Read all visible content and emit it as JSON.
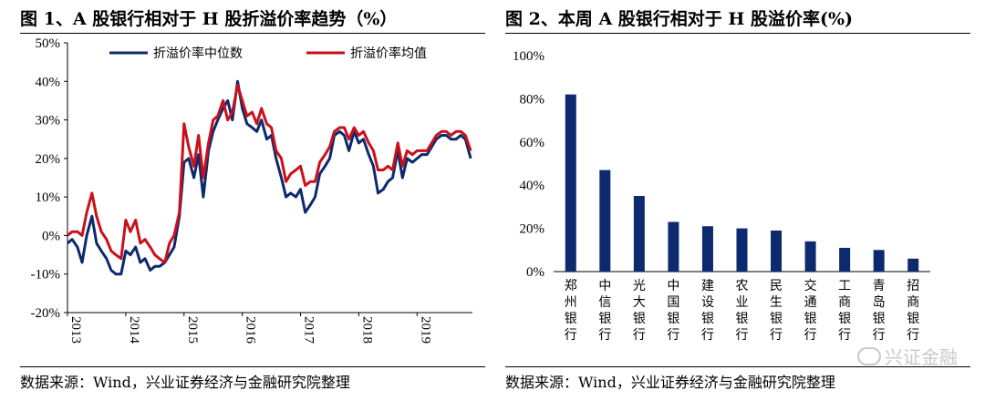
{
  "left": {
    "title": "图 1、A 股银行相对于 H 股折溢价率趋势（%）",
    "source": "数据来源：Wind，兴业证券经济与金融研究院整理"
  },
  "right": {
    "title": "图 2、本周 A 股银行相对于 H 股溢价率(%)",
    "source": "数据来源：Wind，兴业证券经济与金融研究院整理",
    "watermark": "兴证金融"
  },
  "chart_data": [
    {
      "type": "line",
      "title": "图 1、A 股银行相对于 H 股折溢价率趋势（%）",
      "xlabel": "",
      "ylabel": "",
      "ylim": [
        -20,
        50
      ],
      "xlim": [
        2013.0,
        2019.95
      ],
      "ticks_y": [
        "-20%",
        "-10%",
        "0%",
        "10%",
        "20%",
        "30%",
        "40%",
        "50%"
      ],
      "ticks_x": [
        "2013",
        "2014",
        "2015",
        "2016",
        "2017",
        "2018",
        "2019"
      ],
      "legend_position": "top-left",
      "grid": false,
      "series": [
        {
          "name": "折溢价率中位数",
          "color": "#0d2a6e",
          "points": [
            [
              2013.0,
              -2
            ],
            [
              2013.08,
              -1
            ],
            [
              2013.17,
              -3
            ],
            [
              2013.25,
              -7
            ],
            [
              2013.33,
              0
            ],
            [
              2013.42,
              5
            ],
            [
              2013.5,
              -2
            ],
            [
              2013.58,
              -4
            ],
            [
              2013.67,
              -6
            ],
            [
              2013.75,
              -9
            ],
            [
              2013.83,
              -10
            ],
            [
              2013.92,
              -10
            ],
            [
              2014.0,
              -4
            ],
            [
              2014.08,
              -5
            ],
            [
              2014.17,
              -3
            ],
            [
              2014.25,
              -7
            ],
            [
              2014.33,
              -6
            ],
            [
              2014.42,
              -9
            ],
            [
              2014.5,
              -8
            ],
            [
              2014.58,
              -8
            ],
            [
              2014.67,
              -7
            ],
            [
              2014.75,
              -5
            ],
            [
              2014.83,
              -3
            ],
            [
              2014.92,
              5
            ],
            [
              2015.0,
              19
            ],
            [
              2015.08,
              20
            ],
            [
              2015.17,
              15
            ],
            [
              2015.25,
              21
            ],
            [
              2015.33,
              10
            ],
            [
              2015.42,
              22
            ],
            [
              2015.5,
              27
            ],
            [
              2015.58,
              30
            ],
            [
              2015.67,
              33
            ],
            [
              2015.75,
              35
            ],
            [
              2015.83,
              30
            ],
            [
              2015.92,
              40
            ],
            [
              2016.0,
              33
            ],
            [
              2016.08,
              29
            ],
            [
              2016.17,
              28
            ],
            [
              2016.25,
              27
            ],
            [
              2016.33,
              30
            ],
            [
              2016.42,
              25
            ],
            [
              2016.5,
              26
            ],
            [
              2016.58,
              20
            ],
            [
              2016.67,
              15
            ],
            [
              2016.75,
              10
            ],
            [
              2016.83,
              11
            ],
            [
              2016.92,
              10
            ],
            [
              2017.0,
              12
            ],
            [
              2017.08,
              6
            ],
            [
              2017.17,
              8
            ],
            [
              2017.25,
              10
            ],
            [
              2017.33,
              16
            ],
            [
              2017.42,
              18
            ],
            [
              2017.5,
              20
            ],
            [
              2017.58,
              26
            ],
            [
              2017.67,
              27
            ],
            [
              2017.75,
              26
            ],
            [
              2017.83,
              22
            ],
            [
              2017.92,
              27
            ],
            [
              2018.0,
              24
            ],
            [
              2018.08,
              25
            ],
            [
              2018.17,
              21
            ],
            [
              2018.25,
              18
            ],
            [
              2018.33,
              11
            ],
            [
              2018.42,
              12
            ],
            [
              2018.5,
              14
            ],
            [
              2018.58,
              15
            ],
            [
              2018.67,
              22
            ],
            [
              2018.75,
              15
            ],
            [
              2018.83,
              20
            ],
            [
              2018.92,
              19
            ],
            [
              2019.0,
              20
            ],
            [
              2019.08,
              21
            ],
            [
              2019.17,
              21
            ],
            [
              2019.25,
              23
            ],
            [
              2019.33,
              25
            ],
            [
              2019.42,
              26
            ],
            [
              2019.5,
              26
            ],
            [
              2019.58,
              25
            ],
            [
              2019.67,
              25
            ],
            [
              2019.75,
              26
            ],
            [
              2019.83,
              25
            ],
            [
              2019.92,
              20
            ]
          ]
        },
        {
          "name": "折溢价率均值",
          "color": "#c9101b",
          "points": [
            [
              2013.0,
              0
            ],
            [
              2013.08,
              1
            ],
            [
              2013.17,
              1
            ],
            [
              2013.25,
              0
            ],
            [
              2013.33,
              6
            ],
            [
              2013.42,
              11
            ],
            [
              2013.5,
              5
            ],
            [
              2013.58,
              1
            ],
            [
              2013.67,
              -1
            ],
            [
              2013.75,
              -4
            ],
            [
              2013.83,
              -5
            ],
            [
              2013.92,
              -6
            ],
            [
              2014.0,
              4
            ],
            [
              2014.08,
              1
            ],
            [
              2014.17,
              4
            ],
            [
              2014.25,
              -2
            ],
            [
              2014.33,
              -1
            ],
            [
              2014.42,
              -3
            ],
            [
              2014.5,
              -5
            ],
            [
              2014.58,
              -6
            ],
            [
              2014.67,
              -7
            ],
            [
              2014.75,
              -2
            ],
            [
              2014.83,
              0
            ],
            [
              2014.92,
              6
            ],
            [
              2015.0,
              29
            ],
            [
              2015.08,
              23
            ],
            [
              2015.17,
              18
            ],
            [
              2015.25,
              26
            ],
            [
              2015.33,
              15
            ],
            [
              2015.42,
              24
            ],
            [
              2015.5,
              30
            ],
            [
              2015.58,
              31
            ],
            [
              2015.67,
              35
            ],
            [
              2015.75,
              30
            ],
            [
              2015.83,
              32
            ],
            [
              2015.92,
              39
            ],
            [
              2016.0,
              35
            ],
            [
              2016.08,
              31
            ],
            [
              2016.17,
              32
            ],
            [
              2016.25,
              29
            ],
            [
              2016.33,
              33
            ],
            [
              2016.42,
              29
            ],
            [
              2016.5,
              28
            ],
            [
              2016.58,
              22
            ],
            [
              2016.67,
              20
            ],
            [
              2016.75,
              14
            ],
            [
              2016.83,
              16
            ],
            [
              2016.92,
              17
            ],
            [
              2017.0,
              18
            ],
            [
              2017.08,
              13
            ],
            [
              2017.17,
              14
            ],
            [
              2017.25,
              14
            ],
            [
              2017.33,
              19
            ],
            [
              2017.42,
              21
            ],
            [
              2017.5,
              23
            ],
            [
              2017.58,
              27
            ],
            [
              2017.67,
              28
            ],
            [
              2017.75,
              28
            ],
            [
              2017.83,
              25
            ],
            [
              2017.92,
              28
            ],
            [
              2018.0,
              26
            ],
            [
              2018.08,
              27
            ],
            [
              2018.17,
              24
            ],
            [
              2018.25,
              22
            ],
            [
              2018.33,
              17
            ],
            [
              2018.42,
              17
            ],
            [
              2018.5,
              18
            ],
            [
              2018.58,
              17
            ],
            [
              2018.67,
              24
            ],
            [
              2018.75,
              18
            ],
            [
              2018.83,
              22
            ],
            [
              2018.92,
              21
            ],
            [
              2019.0,
              22
            ],
            [
              2019.08,
              22
            ],
            [
              2019.17,
              22
            ],
            [
              2019.25,
              24
            ],
            [
              2019.33,
              26
            ],
            [
              2019.42,
              27
            ],
            [
              2019.5,
              27
            ],
            [
              2019.58,
              26
            ],
            [
              2019.67,
              27
            ],
            [
              2019.75,
              27
            ],
            [
              2019.83,
              26
            ],
            [
              2019.92,
              22
            ]
          ]
        }
      ]
    },
    {
      "type": "bar",
      "title": "图 2、本周 A 股银行相对于 H 股溢价率(%)",
      "xlabel": "",
      "ylabel": "",
      "ylim": [
        0,
        100
      ],
      "ticks_y": [
        "0%",
        "20%",
        "40%",
        "60%",
        "80%",
        "100%"
      ],
      "grid": false,
      "color": "#0d2a6e",
      "categories": [
        "郑州银行",
        "中信银行",
        "光大银行",
        "中国银行",
        "建设银行",
        "农业银行",
        "民生银行",
        "交通银行",
        "工商银行",
        "青岛银行",
        "招商银行"
      ],
      "values": [
        82,
        47,
        35,
        23,
        21,
        20,
        19,
        14,
        11,
        10,
        6
      ]
    }
  ]
}
